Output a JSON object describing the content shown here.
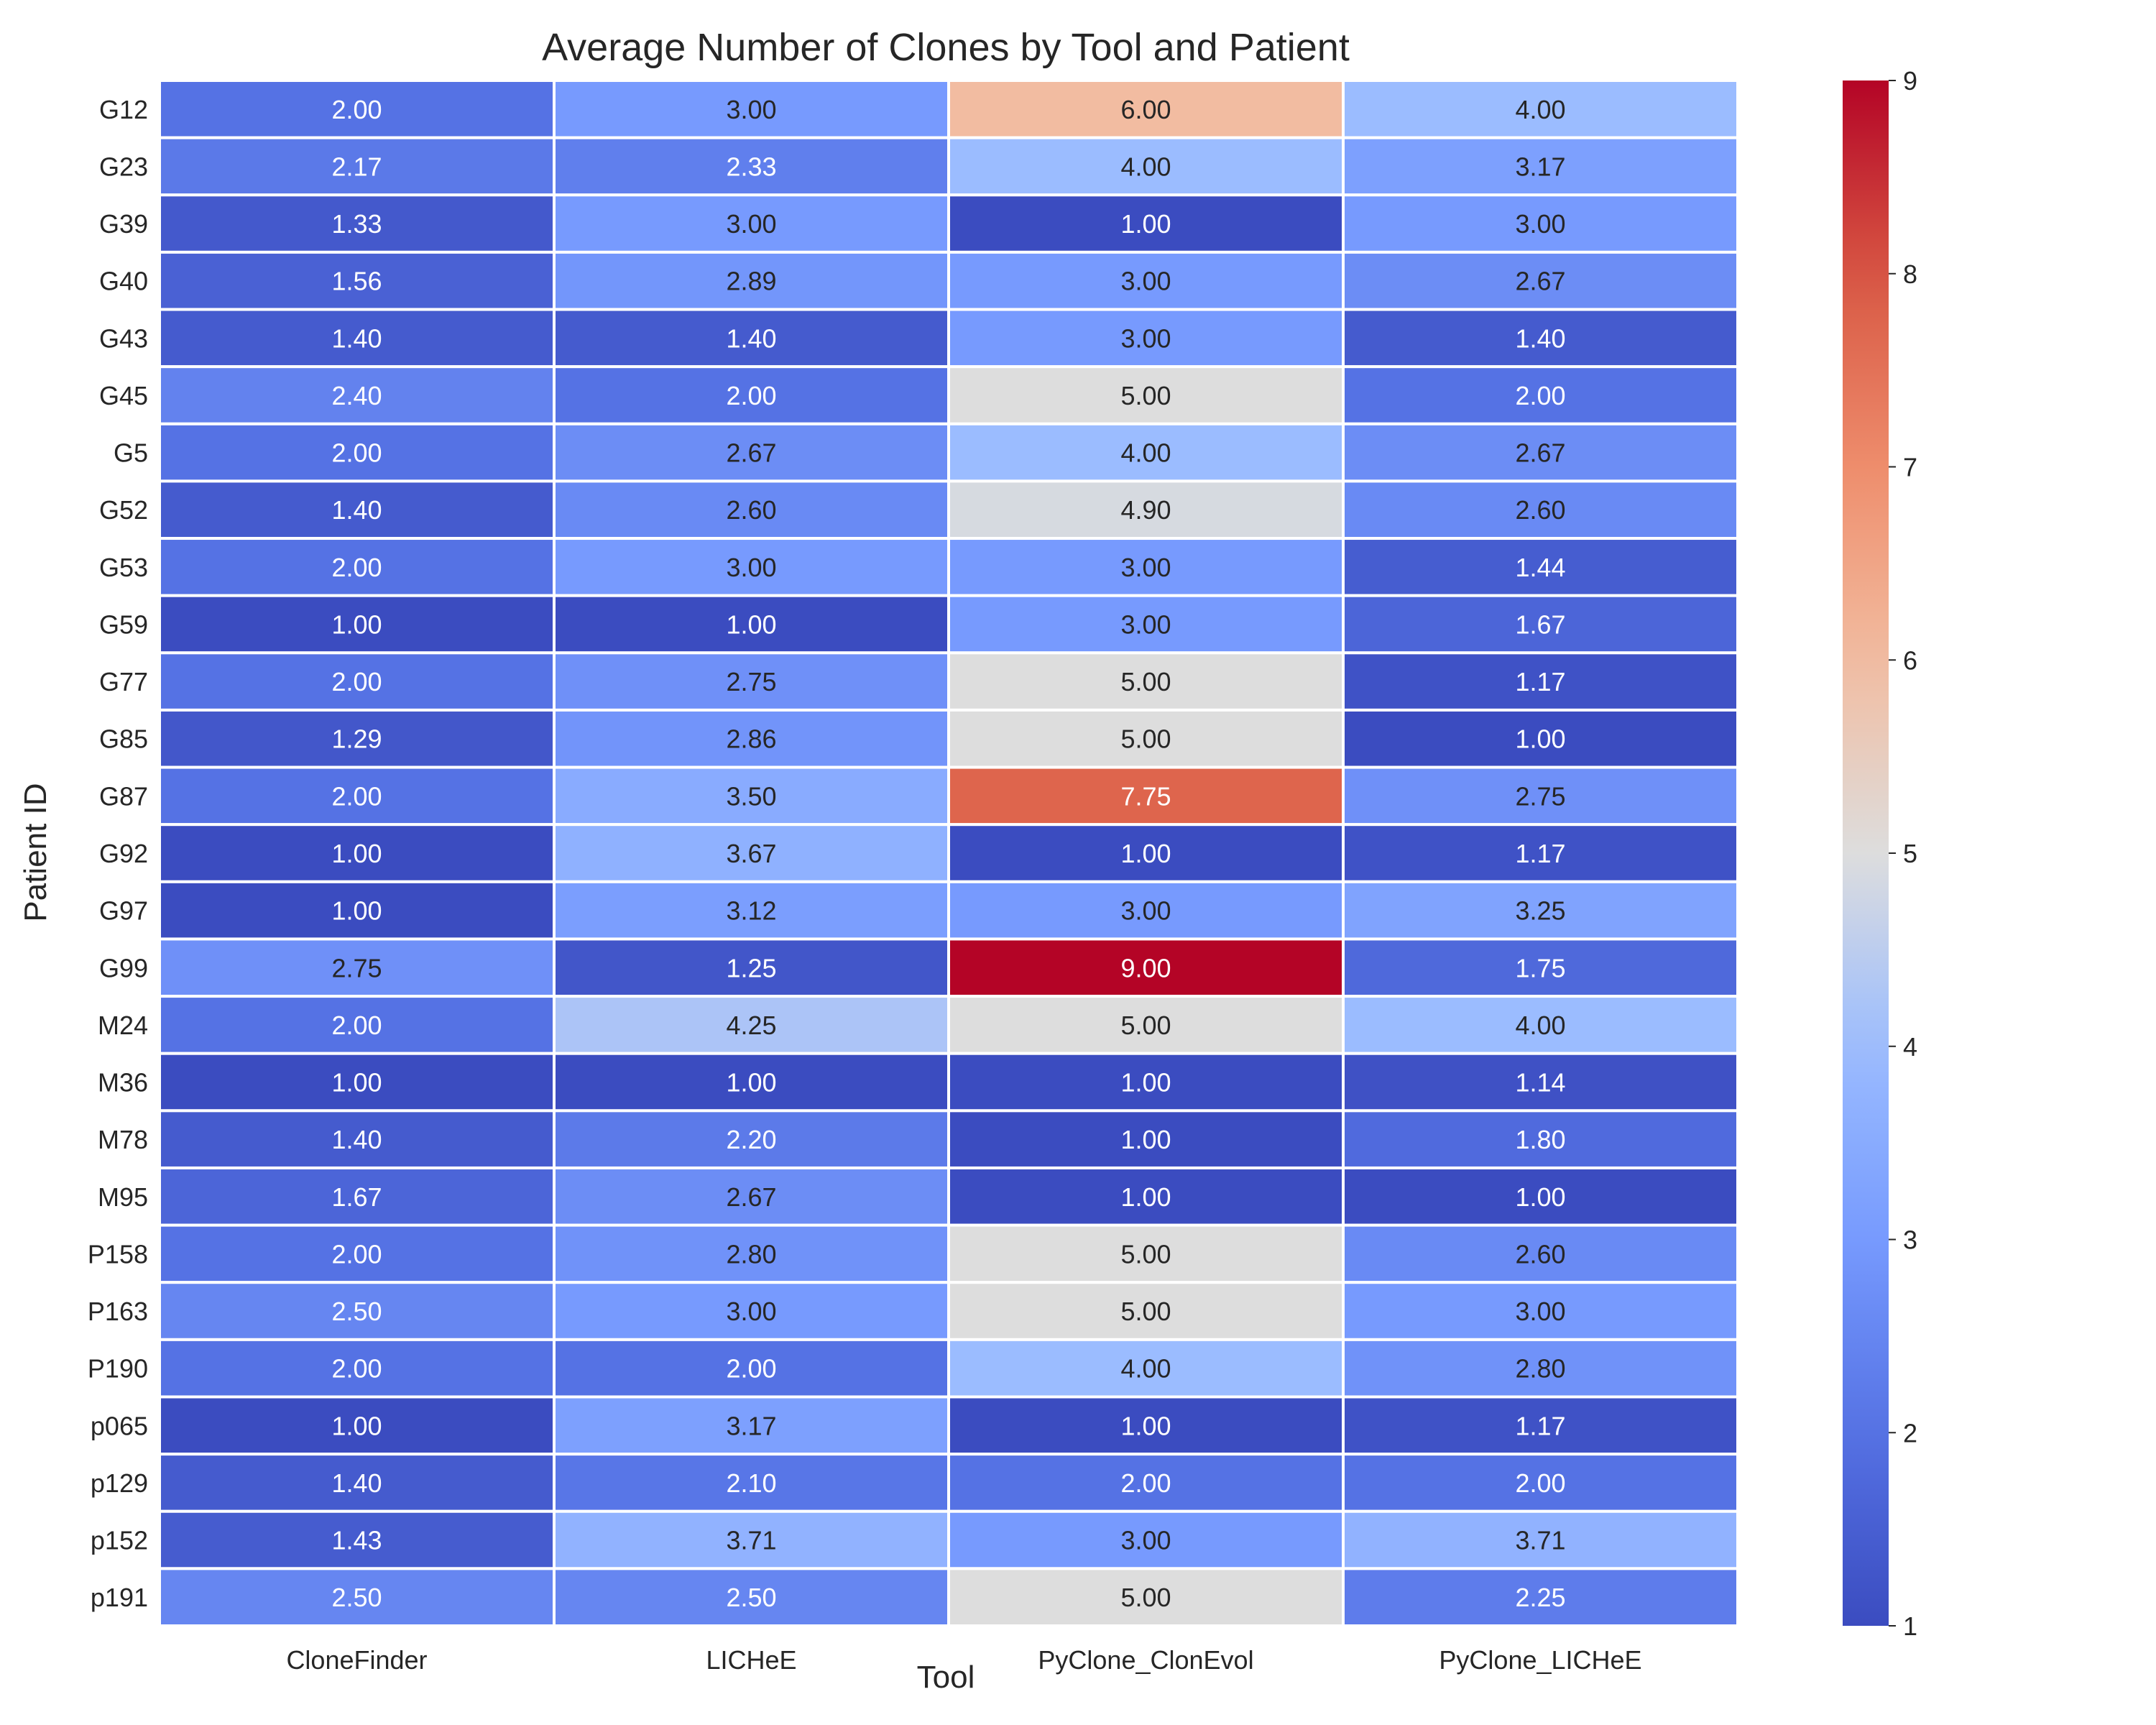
{
  "chart_data": {
    "type": "heatmap",
    "title": "Average Number of Clones by Tool and Patient",
    "xlabel": "Tool",
    "ylabel": "Patient ID",
    "columns": [
      "CloneFinder",
      "LICHeE",
      "PyClone_ClonEvol",
      "PyClone_LICHeE"
    ],
    "rows": [
      "G12",
      "G23",
      "G39",
      "G40",
      "G43",
      "G45",
      "G5",
      "G52",
      "G53",
      "G59",
      "G77",
      "G85",
      "G87",
      "G92",
      "G97",
      "G99",
      "M24",
      "M36",
      "M78",
      "M95",
      "P158",
      "P163",
      "P190",
      "p065",
      "p129",
      "p152",
      "p191"
    ],
    "values": [
      [
        2.0,
        3.0,
        6.0,
        4.0
      ],
      [
        2.17,
        2.33,
        4.0,
        3.17
      ],
      [
        1.33,
        3.0,
        1.0,
        3.0
      ],
      [
        1.56,
        2.89,
        3.0,
        2.67
      ],
      [
        1.4,
        1.4,
        3.0,
        1.4
      ],
      [
        2.4,
        2.0,
        5.0,
        2.0
      ],
      [
        2.0,
        2.67,
        4.0,
        2.67
      ],
      [
        1.4,
        2.6,
        4.9,
        2.6
      ],
      [
        2.0,
        3.0,
        3.0,
        1.44
      ],
      [
        1.0,
        1.0,
        3.0,
        1.67
      ],
      [
        2.0,
        2.75,
        5.0,
        1.17
      ],
      [
        1.29,
        2.86,
        5.0,
        1.0
      ],
      [
        2.0,
        3.5,
        7.75,
        2.75
      ],
      [
        1.0,
        3.67,
        1.0,
        1.17
      ],
      [
        1.0,
        3.12,
        3.0,
        3.25
      ],
      [
        2.75,
        1.25,
        9.0,
        1.75
      ],
      [
        2.0,
        4.25,
        5.0,
        4.0
      ],
      [
        1.0,
        1.0,
        1.0,
        1.14
      ],
      [
        1.4,
        2.2,
        1.0,
        1.8
      ],
      [
        1.67,
        2.67,
        1.0,
        1.0
      ],
      [
        2.0,
        2.8,
        5.0,
        2.6
      ],
      [
        2.5,
        3.0,
        5.0,
        3.0
      ],
      [
        2.0,
        2.0,
        4.0,
        2.8
      ],
      [
        1.0,
        3.17,
        1.0,
        1.17
      ],
      [
        1.4,
        2.1,
        2.0,
        2.0
      ],
      [
        1.43,
        3.71,
        3.0,
        3.71
      ],
      [
        2.5,
        2.5,
        5.0,
        2.25
      ]
    ],
    "value_format": "2 decimals",
    "colormap": "coolwarm",
    "color_range": [
      1,
      9
    ],
    "colorbar_ticks": [
      1,
      2,
      3,
      4,
      5,
      6,
      7,
      8,
      9
    ],
    "grid": false,
    "legend": "colorbar-right"
  }
}
